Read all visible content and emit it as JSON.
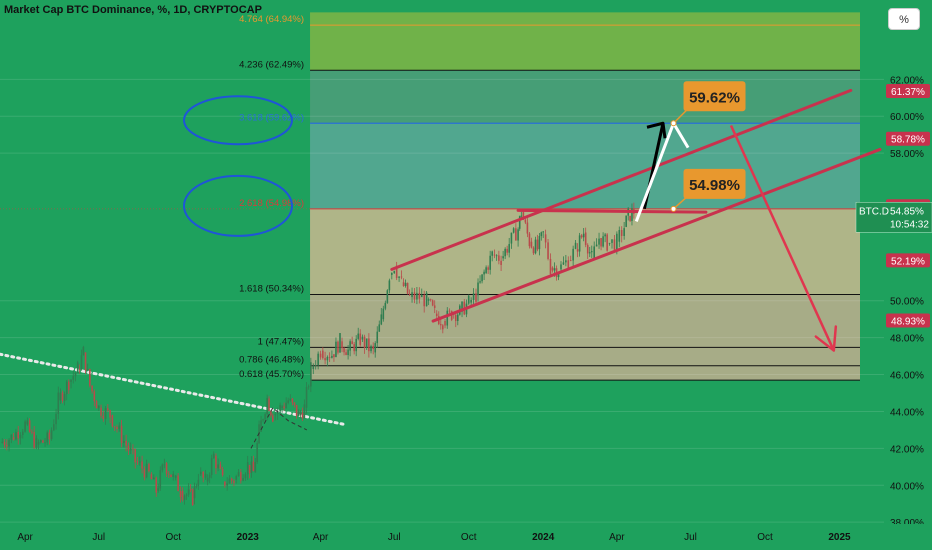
{
  "title": "Market Cap BTC Dominance, %, 1D, CRYPTOCAP",
  "unit_button": "%",
  "colors": {
    "background": "#1ea15d",
    "price_up": "#2f7d4f",
    "price_down": "#b84a4a",
    "channel": "#c8324d",
    "forecast_arrow": "#e0364f",
    "callout": "#e8982e",
    "annotation_circle": "#1f55d8",
    "dotted_trend": "#e9e9e9"
  },
  "chart_data": {
    "type": "line",
    "title": "Market Cap BTC Dominance, %, 1D, CRYPTOCAP",
    "xlabel": "",
    "ylabel": "",
    "yscale": "linear",
    "ylim": [
      37.9,
      66.3
    ],
    "xlim": [
      "2022-03-01",
      "2025-02-25"
    ],
    "x_ticks": [
      {
        "date": "2022-04-01",
        "label": "Apr"
      },
      {
        "date": "2022-07-01",
        "label": "Jul"
      },
      {
        "date": "2022-10-01",
        "label": "Oct"
      },
      {
        "date": "2023-01-01",
        "label": "2023"
      },
      {
        "date": "2023-04-01",
        "label": "Apr"
      },
      {
        "date": "2023-07-01",
        "label": "Jul"
      },
      {
        "date": "2023-10-01",
        "label": "Oct"
      },
      {
        "date": "2024-01-01",
        "label": "2024"
      },
      {
        "date": "2024-04-01",
        "label": "Apr"
      },
      {
        "date": "2024-07-01",
        "label": "Jul"
      },
      {
        "date": "2024-10-01",
        "label": "Oct"
      },
      {
        "date": "2025-01-01",
        "label": "2025"
      }
    ],
    "y_ticks": [
      {
        "value": 38,
        "label": "38.00%"
      },
      {
        "value": 40,
        "label": "40.00%"
      },
      {
        "value": 42,
        "label": "42.00%"
      },
      {
        "value": 44,
        "label": "44.00%"
      },
      {
        "value": 46,
        "label": "46.00%"
      },
      {
        "value": 48,
        "label": "48.00%"
      },
      {
        "value": 50,
        "label": "50.00%"
      },
      {
        "value": 58,
        "label": "58.00%"
      },
      {
        "value": 60,
        "label": "60.00%"
      },
      {
        "value": 62,
        "label": "62.00%"
      }
    ],
    "price_tags": [
      {
        "value": 61.37,
        "label": "61.37%",
        "color": "#c8324d"
      },
      {
        "value": 58.78,
        "label": "58.78%",
        "color": "#c8324d"
      },
      {
        "value": 55.12,
        "label": "55.12%",
        "color": "#c8324d"
      },
      {
        "value": 54.97,
        "label": "54.97%",
        "color": "#c8324d"
      },
      {
        "value": 52.19,
        "label": "52.19%",
        "color": "#c8324d"
      },
      {
        "value": 48.93,
        "label": "48.93%",
        "color": "#c8324d"
      }
    ],
    "last_price": {
      "symbol": "BTC.D",
      "value": 54.85,
      "label": "54.85%",
      "countdown": "10:54:32"
    },
    "series": [
      {
        "name": "BTC.D",
        "points": [
          [
            "2022-03-01",
            42.3
          ],
          [
            "2022-03-15",
            42.6
          ],
          [
            "2022-04-01",
            43.3
          ],
          [
            "2022-04-15",
            42.2
          ],
          [
            "2022-05-01",
            42.5
          ],
          [
            "2022-05-12",
            44.6
          ],
          [
            "2022-05-25",
            45.6
          ],
          [
            "2022-06-05",
            46.3
          ],
          [
            "2022-06-12",
            47.2
          ],
          [
            "2022-06-20",
            45.4
          ],
          [
            "2022-07-01",
            44.2
          ],
          [
            "2022-07-15",
            43.8
          ],
          [
            "2022-08-01",
            42.4
          ],
          [
            "2022-08-15",
            41.3
          ],
          [
            "2022-09-01",
            40.6
          ],
          [
            "2022-09-10",
            39.7
          ],
          [
            "2022-09-20",
            41.2
          ],
          [
            "2022-10-01",
            40.4
          ],
          [
            "2022-10-10",
            39.7
          ],
          [
            "2022-10-25",
            39.3
          ],
          [
            "2022-11-01",
            40.6
          ],
          [
            "2022-11-10",
            40.2
          ],
          [
            "2022-11-20",
            41.6
          ],
          [
            "2022-12-01",
            40.2
          ],
          [
            "2022-12-15",
            40.3
          ],
          [
            "2023-01-01",
            41.1
          ],
          [
            "2023-01-08",
            40.7
          ],
          [
            "2023-01-15",
            42.9
          ],
          [
            "2023-01-25",
            44.7
          ],
          [
            "2023-02-01",
            43.8
          ],
          [
            "2023-02-10",
            44.2
          ],
          [
            "2023-02-20",
            44.6
          ],
          [
            "2023-03-05",
            43.8
          ],
          [
            "2023-03-12",
            44.2
          ],
          [
            "2023-03-20",
            46.3
          ],
          [
            "2023-04-01",
            47.3
          ],
          [
            "2023-04-15",
            47.1
          ],
          [
            "2023-04-25",
            47.8
          ],
          [
            "2023-05-05",
            47.3
          ],
          [
            "2023-05-20",
            47.9
          ],
          [
            "2023-06-05",
            47.2
          ],
          [
            "2023-06-15",
            49.0
          ],
          [
            "2023-06-25",
            51.4
          ],
          [
            "2023-07-01",
            51.9
          ],
          [
            "2023-07-10",
            51.0
          ],
          [
            "2023-07-20",
            50.2
          ],
          [
            "2023-08-01",
            50.2
          ],
          [
            "2023-08-10",
            50.0
          ],
          [
            "2023-08-20",
            49.3
          ],
          [
            "2023-08-30",
            48.9
          ],
          [
            "2023-09-10",
            49.3
          ],
          [
            "2023-09-20",
            49.4
          ],
          [
            "2023-10-01",
            49.9
          ],
          [
            "2023-10-10",
            50.3
          ],
          [
            "2023-10-20",
            51.5
          ],
          [
            "2023-10-30",
            52.5
          ],
          [
            "2023-11-10",
            52.3
          ],
          [
            "2023-11-20",
            53.1
          ],
          [
            "2023-12-01",
            53.9
          ],
          [
            "2023-12-05",
            54.8
          ],
          [
            "2023-12-15",
            53.2
          ],
          [
            "2023-12-25",
            52.8
          ],
          [
            "2024-01-01",
            53.6
          ],
          [
            "2024-01-10",
            51.8
          ],
          [
            "2024-01-20",
            51.7
          ],
          [
            "2024-02-01",
            52.2
          ],
          [
            "2024-02-10",
            52.8
          ],
          [
            "2024-02-20",
            53.7
          ],
          [
            "2024-03-01",
            52.3
          ],
          [
            "2024-03-10",
            53.4
          ],
          [
            "2024-03-20",
            53.1
          ],
          [
            "2024-04-01",
            53.2
          ],
          [
            "2024-04-10",
            54.0
          ],
          [
            "2024-04-15",
            54.6
          ],
          [
            "2024-04-22",
            54.85
          ]
        ]
      }
    ],
    "fib_levels": [
      {
        "ratio": "1",
        "value": 47.47,
        "label": "1 (47.47%)",
        "label_color": "#111111"
      },
      {
        "ratio": "0.786",
        "value": 46.48,
        "label": "0.786 (46.48%)",
        "label_color": "#111111"
      },
      {
        "ratio": "0.618",
        "value": 45.7,
        "label": "0.618 (45.70%)",
        "label_color": "#111111"
      },
      {
        "ratio": "1.618",
        "value": 50.34,
        "label": "1.618 (50.34%)",
        "label_color": "#111111"
      },
      {
        "ratio": "2.618",
        "value": 54.98,
        "label": "2.618 (54.98%)",
        "label_color": "#d83b3b"
      },
      {
        "ratio": "3.618",
        "value": 59.62,
        "label": "3.618 (59.62%)",
        "label_color": "#2a6fd6"
      },
      {
        "ratio": "4.236",
        "value": 62.49,
        "label": "4.236 (62.49%)",
        "label_color": "#111111"
      },
      {
        "ratio": "4.764",
        "value": 64.94,
        "label": "4.764 (64.94%)",
        "label_color": "#e8982e"
      }
    ],
    "fib_zones": [
      {
        "from": 45.7,
        "to": 50.34,
        "color": "#bfae8e"
      },
      {
        "from": 50.34,
        "to": 54.98,
        "color": "#c9b98f"
      },
      {
        "from": 54.98,
        "to": 59.62,
        "color": "#5aa898"
      },
      {
        "from": 59.62,
        "to": 62.49,
        "color": "#4e9e7a"
      },
      {
        "from": 62.49,
        "to": 65.63,
        "color": "#7fb545"
      }
    ],
    "channel": {
      "upper": [
        [
          "2023-06-28",
          51.7
        ],
        [
          "2025-01-15",
          61.4
        ]
      ],
      "lower": [
        [
          "2023-08-18",
          48.9
        ],
        [
          "2025-02-20",
          58.2
        ]
      ],
      "top_line": [
        [
          "2023-12-01",
          54.9
        ],
        [
          "2024-07-20",
          54.8
        ]
      ]
    },
    "forecast": [
      [
        "2024-08-20",
        59.5
      ],
      [
        "2024-12-25",
        47.3
      ]
    ],
    "callouts": [
      {
        "text": "59.62%",
        "anchor": [
          "2024-06-10",
          59.62
        ]
      },
      {
        "text": "54.98%",
        "anchor": [
          "2024-06-10",
          54.98
        ]
      }
    ],
    "projection_arrows": {
      "black": [
        [
          "2024-05-05",
          54.98
        ],
        [
          "2024-05-28",
          59.62
        ]
      ],
      "white": [
        [
          "2024-04-25",
          54.3
        ],
        [
          "2024-06-10",
          59.62
        ],
        [
          "2024-06-28",
          58.3
        ]
      ]
    },
    "dotted_trend": [
      [
        "2022-03-01",
        47.1
      ],
      [
        "2023-04-30",
        43.3
      ]
    ],
    "pattern_dashes": [
      [
        "2023-01-05",
        42.0
      ],
      [
        "2023-02-01",
        44.2
      ],
      [
        "2023-02-20",
        43.5
      ],
      [
        "2023-03-15",
        43.0
      ]
    ],
    "annotation_circles": [
      {
        "around": "3.618 (59.62%)"
      },
      {
        "around": "2.618 (54.98%)"
      }
    ]
  }
}
